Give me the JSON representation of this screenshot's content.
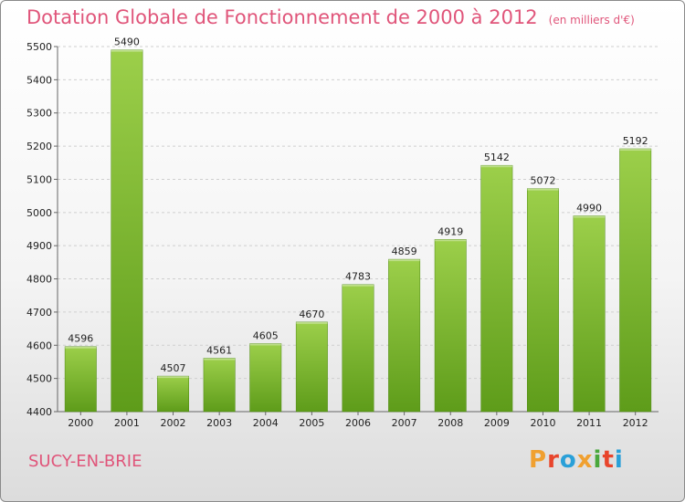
{
  "header": {
    "title": "Dotation Globale de Fonctionnement de 2000 à 2012",
    "unit": "(en milliers d'€)"
  },
  "footer": {
    "city": "SUCY-EN-BRIE",
    "logo_text": "Proxiti",
    "logo_colors": [
      "#f0a030",
      "#e8452c",
      "#2aa0d8",
      "#f0a030",
      "#4aa83c",
      "#e8452c",
      "#2aa0d8"
    ]
  },
  "colors": {
    "bar_top": "#9ccf4a",
    "bar_bottom": "#5e9c1a",
    "text": "#222222",
    "accent": "#e0557a"
  },
  "chart_data": {
    "type": "bar",
    "categories": [
      "2000",
      "2001",
      "2002",
      "2003",
      "2004",
      "2005",
      "2006",
      "2007",
      "2008",
      "2009",
      "2010",
      "2011",
      "2012"
    ],
    "values": [
      4596,
      5490,
      4507,
      4561,
      4605,
      4670,
      4783,
      4859,
      4919,
      5142,
      5072,
      4990,
      5192
    ],
    "ylim": [
      4400,
      5500
    ],
    "yticks": [
      4400,
      4500,
      4600,
      4700,
      4800,
      4900,
      5000,
      5100,
      5200,
      5300,
      5400,
      5500
    ],
    "grid": true,
    "legend": "none"
  }
}
